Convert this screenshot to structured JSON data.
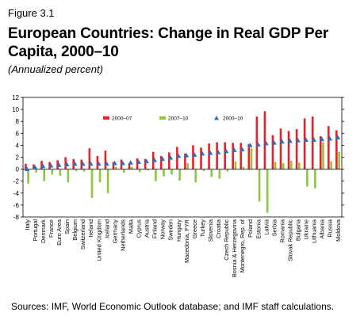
{
  "figure_label": "Figure 3.1",
  "title": "European Countries: Change in Real GDP Per Capita, 2000–10",
  "subtitle": "(Annualized percent)",
  "source": "Sources: IMF, World Economic Outlook database; and IMF staff calculations.",
  "chart_data": {
    "type": "bar",
    "title": "European Countries: Change in Real GDP Per Capita, 2000–10",
    "subtitle": "(Annualized percent)",
    "xlabel": "",
    "ylabel": "",
    "ylim": [
      -8,
      12
    ],
    "yticks": [
      -8,
      -6,
      -4,
      -2,
      0,
      2,
      4,
      6,
      8,
      10,
      12
    ],
    "legend_position": "top",
    "categories": [
      "Italy",
      "Portugal",
      "Denmark",
      "France",
      "Euro Area",
      "Spain",
      "Belgium",
      "Switzerland",
      "Ireland",
      "United Kingdom",
      "Iceland",
      "Germany",
      "Netherlands",
      "Malta",
      "Cyprus",
      "Austria",
      "Finland",
      "Norway",
      "Sweden",
      "Hungary",
      "Macedonia, FYR",
      "Greece",
      "Turkey",
      "Slovenia",
      "Croatia",
      "Czech Republic",
      "Bosnia & Herzegovina",
      "Montenegro, Rep. of",
      "Poland",
      "Estonia",
      "Latvia",
      "Serbia",
      "Romania",
      "Slovak Republic",
      "Bulgaria",
      "Ukraine",
      "Lithuania",
      "Albania",
      "Russia",
      "Moldova"
    ],
    "series": [
      {
        "name": "2000–07",
        "color": "#e8202a",
        "kind": "bar",
        "values": [
          0.9,
          0.8,
          1.4,
          1.2,
          1.5,
          2.0,
          1.7,
          1.6,
          3.5,
          2.2,
          3.1,
          1.2,
          1.6,
          1.0,
          1.8,
          1.7,
          2.9,
          2.2,
          2.8,
          3.7,
          2.6,
          4.0,
          3.6,
          4.3,
          4.5,
          4.5,
          4.4,
          4.4,
          4.2,
          8.8,
          9.7,
          5.7,
          6.8,
          6.4,
          6.7,
          8.5,
          8.8,
          5.5,
          7.2,
          6.5
        ]
      },
      {
        "name": "2007–10",
        "color": "#8dc63f",
        "kind": "bar",
        "values": [
          -2.4,
          -0.6,
          -2.0,
          -0.9,
          -1.1,
          -2.2,
          -0.3,
          -0.4,
          -4.8,
          -2.2,
          -4.0,
          0.4,
          -0.6,
          0.4,
          -0.5,
          -0.2,
          -2.0,
          -1.2,
          -0.9,
          -1.9,
          1.0,
          -2.2,
          -0.3,
          -1.3,
          -1.6,
          -0.4,
          1.3,
          0.4,
          3.5,
          -5.4,
          -7.3,
          1.2,
          1.0,
          1.4,
          1.1,
          -2.9,
          -3.2,
          4.5,
          1.3,
          2.9
        ]
      },
      {
        "name": "2000–10",
        "color": "#2e6fb5",
        "kind": "triangle",
        "values": [
          0.0,
          0.3,
          0.5,
          0.6,
          0.7,
          0.8,
          0.9,
          0.9,
          0.9,
          0.9,
          0.9,
          1.0,
          1.0,
          1.1,
          1.2,
          1.3,
          1.5,
          1.7,
          1.9,
          2.2,
          2.3,
          2.4,
          2.6,
          2.7,
          2.8,
          3.0,
          3.2,
          3.3,
          4.0,
          4.1,
          4.3,
          4.4,
          4.6,
          4.7,
          4.8,
          4.9,
          4.9,
          5.0,
          5.1,
          5.3
        ]
      }
    ]
  }
}
